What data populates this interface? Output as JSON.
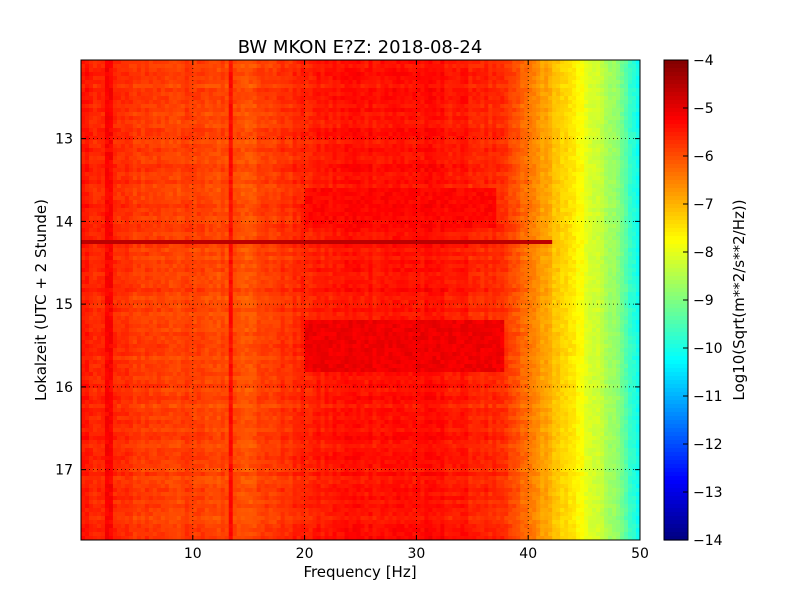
{
  "chart_data": {
    "type": "heatmap",
    "title": "BW MKON E?Z: 2018-08-24",
    "xlabel": "Frequency [Hz]",
    "ylabel": "Lokalzeit (UTC + 2 Stunde)",
    "xlim": [
      0,
      50
    ],
    "ylim": [
      12.05,
      17.85
    ],
    "y_inverted": true,
    "x_ticks": [
      10,
      20,
      30,
      40,
      50
    ],
    "x_tick_labels": [
      "10",
      "20",
      "30",
      "40",
      "50"
    ],
    "y_ticks": [
      13,
      14,
      15,
      16,
      17
    ],
    "y_tick_labels": [
      "13",
      "14",
      "15",
      "16",
      "17"
    ],
    "grid": true,
    "colormap": "jet",
    "colorbar": {
      "label": "Log10(Sqrt(m**2/s**2/Hz))",
      "range": [
        -14,
        -4
      ],
      "ticks": [
        -4,
        -5,
        -6,
        -7,
        -8,
        -9,
        -10,
        -11,
        -12,
        -13,
        -14
      ],
      "tick_labels": [
        "−4",
        "−5",
        "−6",
        "−7",
        "−8",
        "−9",
        "−10",
        "−11",
        "−12",
        "−13",
        "−14"
      ]
    },
    "spectral_profile": {
      "frequency_hz": [
        0,
        2,
        5,
        10,
        15,
        20,
        24,
        28,
        32,
        36,
        38,
        40,
        42,
        44,
        46,
        48,
        50
      ],
      "log10_amplitude": [
        -5.5,
        -5.6,
        -5.8,
        -5.9,
        -6.0,
        -5.6,
        -5.4,
        -5.4,
        -5.4,
        -5.6,
        -5.8,
        -6.4,
        -7.0,
        -7.6,
        -8.2,
        -8.9,
        -10.3
      ]
    },
    "features": [
      {
        "type": "horizontal_line",
        "time": 14.25,
        "log10_amplitude": -4.6
      },
      {
        "type": "band",
        "time_range": [
          15.2,
          15.8
        ],
        "freq_range": [
          20,
          38
        ],
        "log10_amplitude": -5.1
      },
      {
        "type": "band",
        "time_range": [
          13.6,
          14.1
        ],
        "freq_range": [
          20,
          37
        ],
        "log10_amplitude": -5.3
      },
      {
        "type": "vertical_line",
        "frequency_hz": 2.5,
        "log10_amplitude": -5.1
      },
      {
        "type": "vertical_line",
        "frequency_hz": 13.5,
        "log10_amplitude": -5.2
      }
    ]
  }
}
